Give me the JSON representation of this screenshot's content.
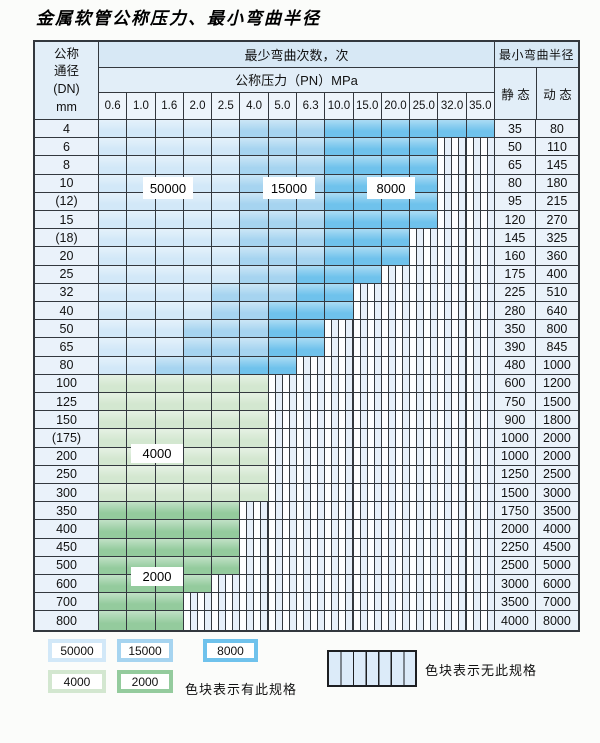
{
  "title": "金属软管公称压力、最小弯曲半径",
  "table": {
    "corner": {
      "line1": "公称",
      "line2": "通径",
      "line3": "(DN)",
      "line4": "mm"
    },
    "bend_cycles_header": "最少弯曲次数，次",
    "pressure_header": "公称压力（PN）MPa",
    "radius_header": "最小弯曲半径",
    "static_label": "静 态",
    "dynamic_label": "动 态",
    "pressure_columns": [
      "0.6",
      "1.0",
      "1.6",
      "2.0",
      "2.5",
      "4.0",
      "5.0",
      "6.3",
      "10.0",
      "15.0",
      "20.0",
      "25.0",
      "32.0",
      "35.0"
    ],
    "cell_zone_codes": {
      "5": "50000",
      "1": "15000",
      "8": "8000",
      "4": "4000",
      "2": "2000",
      "x": "no-spec"
    },
    "rows": [
      {
        "dn": "4",
        "cells": "55555111888888",
        "static": "35",
        "dynamic": "80"
      },
      {
        "dn": "6",
        "cells": "555551118888xx",
        "static": "50",
        "dynamic": "110"
      },
      {
        "dn": "8",
        "cells": "555551118888xx",
        "static": "65",
        "dynamic": "145"
      },
      {
        "dn": "10",
        "cells": "555551118888xx",
        "static": "80",
        "dynamic": "180"
      },
      {
        "dn": "(12)",
        "cells": "555551118888xx",
        "static": "95",
        "dynamic": "215"
      },
      {
        "dn": "15",
        "cells": "555551118888xx",
        "static": "120",
        "dynamic": "270"
      },
      {
        "dn": "(18)",
        "cells": "55555111888xxx",
        "static": "145",
        "dynamic": "325"
      },
      {
        "dn": "20",
        "cells": "55555111888xxx",
        "static": "160",
        "dynamic": "360"
      },
      {
        "dn": "25",
        "cells": "5555511888xxxx",
        "static": "175",
        "dynamic": "400"
      },
      {
        "dn": "32",
        "cells": "555511188xxxxx",
        "static": "225",
        "dynamic": "510"
      },
      {
        "dn": "40",
        "cells": "555511888xxxxx",
        "static": "280",
        "dynamic": "640"
      },
      {
        "dn": "50",
        "cells": "55511188xxxxxx",
        "static": "350",
        "dynamic": "800"
      },
      {
        "dn": "65",
        "cells": "55511188xxxxxx",
        "static": "390",
        "dynamic": "845"
      },
      {
        "dn": "80",
        "cells": "5511188xxxxxxx",
        "static": "480",
        "dynamic": "1000"
      },
      {
        "dn": "100",
        "cells": "444444xxxxxxxx",
        "static": "600",
        "dynamic": "1200"
      },
      {
        "dn": "125",
        "cells": "444444xxxxxxxx",
        "static": "750",
        "dynamic": "1500"
      },
      {
        "dn": "150",
        "cells": "444444xxxxxxxx",
        "static": "900",
        "dynamic": "1800"
      },
      {
        "dn": "(175)",
        "cells": "444444xxxxxxxx",
        "static": "1000",
        "dynamic": "2000"
      },
      {
        "dn": "200",
        "cells": "444444xxxxxxxx",
        "static": "1000",
        "dynamic": "2000"
      },
      {
        "dn": "250",
        "cells": "444444xxxxxxxx",
        "static": "1250",
        "dynamic": "2500"
      },
      {
        "dn": "300",
        "cells": "444444xxxxxxxx",
        "static": "1500",
        "dynamic": "3000"
      },
      {
        "dn": "350",
        "cells": "22222xxxxxxxxx",
        "static": "1750",
        "dynamic": "3500"
      },
      {
        "dn": "400",
        "cells": "22222xxxxxxxxx",
        "static": "2000",
        "dynamic": "4000"
      },
      {
        "dn": "450",
        "cells": "22222xxxxxxxxx",
        "static": "2250",
        "dynamic": "4500"
      },
      {
        "dn": "500",
        "cells": "22222xxxxxxxxx",
        "static": "2500",
        "dynamic": "5000"
      },
      {
        "dn": "600",
        "cells": "2222xxxxxxxxxx",
        "static": "3000",
        "dynamic": "6000"
      },
      {
        "dn": "700",
        "cells": "222xxxxxxxxxxx",
        "static": "3500",
        "dynamic": "7000"
      },
      {
        "dn": "800",
        "cells": "222xxxxxxxxxxx",
        "static": "4000",
        "dynamic": "8000"
      }
    ]
  },
  "overlay_labels": [
    {
      "id": "label-50000",
      "text": "50000"
    },
    {
      "id": "label-15000",
      "text": "15000"
    },
    {
      "id": "label-8000",
      "text": "8000"
    },
    {
      "id": "label-4000",
      "text": "4000"
    },
    {
      "id": "label-2000",
      "text": "2000"
    }
  ],
  "legend": {
    "chips": [
      {
        "value": "50000",
        "zone": "5"
      },
      {
        "value": "15000",
        "zone": "1"
      },
      {
        "value": "8000",
        "zone": "8"
      },
      {
        "value": "4000",
        "zone": "4"
      },
      {
        "value": "2000",
        "zone": "2"
      }
    ],
    "has_spec_note": "色块表示有此规格",
    "no_spec_note": "色块表示无此规格"
  },
  "colors": {
    "zone_50000": "#d2e8f8",
    "zone_15000": "#a6d4f0",
    "zone_8000": "#6fc2ec",
    "zone_4000": "#d3e7d0",
    "zone_2000": "#94cb9d",
    "grid_line": "#33383e",
    "header_band1": "#d7e8f5",
    "header_band2": "#e2eef8",
    "header_band3": "#edf4fb",
    "label_col_bg": "#eaf2fa"
  }
}
